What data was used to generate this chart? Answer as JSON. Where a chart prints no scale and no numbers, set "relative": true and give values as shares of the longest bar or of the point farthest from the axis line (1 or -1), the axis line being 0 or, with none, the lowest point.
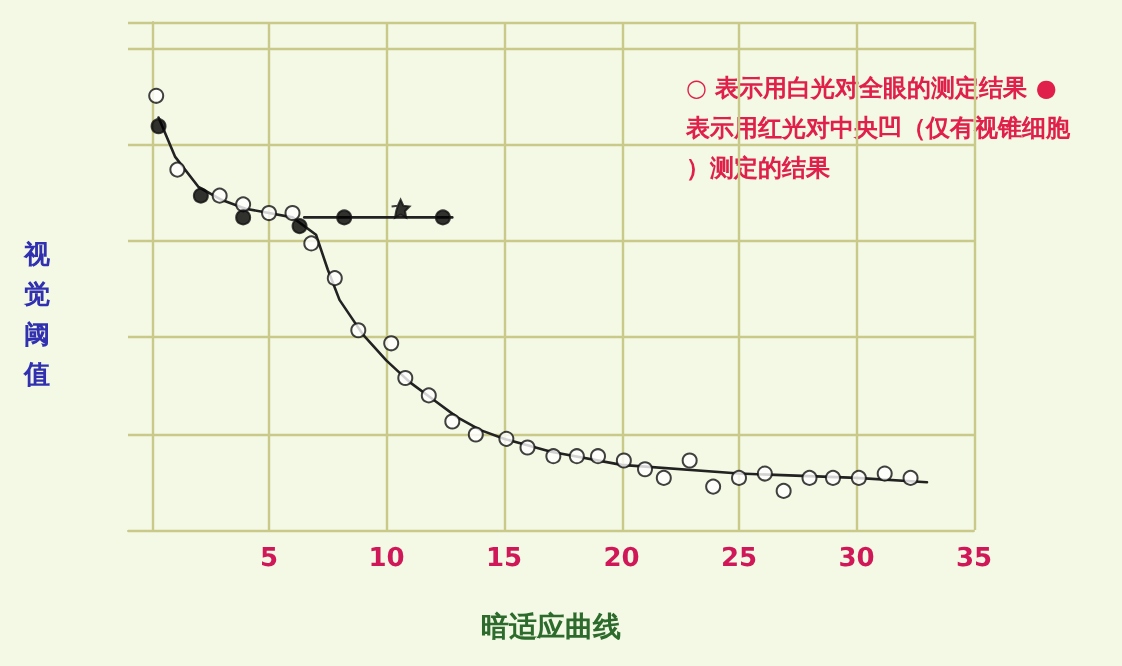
{
  "chart_data": {
    "type": "scatter",
    "xlabel": "暗适应曲线",
    "ylabel": "视觉阈值",
    "annotations": [
      "○ 表示用白光对全眼的测定结果 ●表示用红光对中央凹（仅有视锥细胞）测定的结果"
    ],
    "relative": true,
    "xlim": [
      -1,
      35
    ],
    "xticks": [
      {
        "value": 0,
        "label": null
      },
      5,
      10,
      15,
      20,
      25,
      30,
      35
    ],
    "grid": true,
    "marker": "circle",
    "series": [
      {
        "color": "#ffffff",
        "x": [
          0.2,
          1.1,
          2.9,
          3.9,
          5.0,
          6.0,
          6.8,
          7.8,
          8.8,
          10.2,
          10.8,
          11.8,
          12.8,
          13.8,
          15.1,
          16.0,
          17.1,
          18.1,
          19.0,
          20.1,
          21.0,
          21.8,
          22.9,
          23.9,
          25.0,
          26.1,
          26.9,
          28.0,
          29.0,
          30.1,
          31.2,
          32.3
        ],
        "values": [
          1.0,
          0.83,
          0.77,
          0.75,
          0.73,
          0.73,
          0.66,
          0.58,
          0.46,
          0.43,
          0.35,
          0.31,
          0.25,
          0.22,
          0.21,
          0.19,
          0.17,
          0.17,
          0.17,
          0.16,
          0.14,
          0.12,
          0.16,
          0.1,
          0.12,
          0.13,
          0.09,
          0.12,
          0.12,
          0.12,
          0.13,
          0.12
        ]
      },
      {
        "color": "#000000",
        "x": [
          0.3,
          2.1,
          3.9,
          6.3,
          8.2,
          12.4
        ],
        "values": [
          0.93,
          0.77,
          0.72,
          0.7,
          0.72,
          0.72
        ]
      },
      {
        "color": "#000000",
        "marker": "star",
        "x": [
          10.6
        ],
        "values": [
          0.74
        ]
      },
      {
        "type": "line",
        "color": "#222222",
        "marker": "none",
        "x": [
          0.3,
          1,
          2,
          3,
          4,
          5,
          6,
          7,
          7.5,
          8,
          9,
          10,
          11,
          12,
          13,
          14,
          15,
          17,
          20,
          25,
          30,
          33
        ],
        "values": [
          0.95,
          0.86,
          0.79,
          0.76,
          0.74,
          0.73,
          0.72,
          0.68,
          0.6,
          0.53,
          0.45,
          0.39,
          0.34,
          0.3,
          0.26,
          0.23,
          0.21,
          0.18,
          0.15,
          0.13,
          0.12,
          0.11
        ]
      },
      {
        "type": "line",
        "color": "#222222",
        "marker": "none",
        "x": [
          6.5,
          12.8
        ],
        "values": [
          0.72,
          0.72
        ]
      }
    ]
  }
}
